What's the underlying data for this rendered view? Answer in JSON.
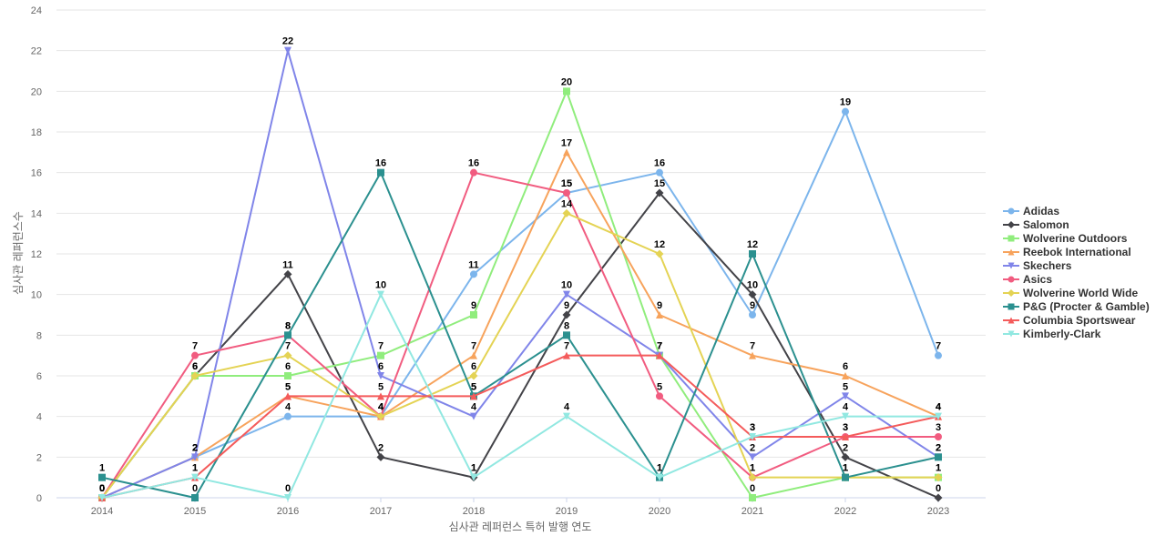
{
  "chart_data": {
    "type": "line",
    "title": "",
    "xlabel": "심사관 레퍼런스 특허 발행 연도",
    "ylabel": "심사관 레퍼런스수",
    "x": [
      "2014",
      "2015",
      "2016",
      "2017",
      "2018",
      "2019",
      "2020",
      "2021",
      "2022",
      "2023"
    ],
    "ylim": [
      0,
      24
    ],
    "yticks": [
      0,
      2,
      4,
      6,
      8,
      10,
      12,
      14,
      16,
      18,
      20,
      22,
      24
    ],
    "grid": true,
    "legend_position": "right",
    "series": [
      {
        "name": "Adidas",
        "color": "#7cb5ec",
        "marker": "circle",
        "values": [
          0,
          2,
          4,
          4,
          11,
          15,
          16,
          9,
          19,
          7
        ]
      },
      {
        "name": "Salomon",
        "color": "#434348",
        "marker": "diamond",
        "values": [
          0,
          6,
          11,
          2,
          1,
          9,
          15,
          10,
          2,
          0
        ]
      },
      {
        "name": "Wolverine Outdoors",
        "color": "#90ed7d",
        "marker": "square",
        "values": [
          0,
          6,
          6,
          7,
          9,
          20,
          7,
          0,
          1,
          1
        ]
      },
      {
        "name": "Reebok International",
        "color": "#f7a35c",
        "marker": "triangle",
        "values": [
          0,
          2,
          5,
          4,
          7,
          17,
          9,
          7,
          6,
          4
        ]
      },
      {
        "name": "Skechers",
        "color": "#8085e9",
        "marker": "triangle-down",
        "values": [
          0,
          2,
          22,
          6,
          4,
          10,
          7,
          2,
          5,
          2
        ]
      },
      {
        "name": "Asics",
        "color": "#f15c80",
        "marker": "circle",
        "values": [
          0,
          7,
          8,
          4,
          16,
          15,
          5,
          1,
          3,
          3
        ]
      },
      {
        "name": "Wolverine World Wide",
        "color": "#e4d354",
        "marker": "diamond",
        "values": [
          0,
          6,
          7,
          4,
          6,
          14,
          12,
          1,
          1,
          1
        ]
      },
      {
        "name": "P&G (Procter & Gamble)",
        "color": "#2b908f",
        "marker": "square",
        "values": [
          1,
          0,
          8,
          16,
          5,
          8,
          1,
          12,
          1,
          2
        ]
      },
      {
        "name": "Columbia Sportswear",
        "color": "#f45b5b",
        "marker": "triangle",
        "values": [
          0,
          1,
          5,
          5,
          5,
          7,
          7,
          3,
          3,
          4
        ]
      },
      {
        "name": "Kimberly-Clark",
        "color": "#91e8e1",
        "marker": "triangle-down",
        "values": [
          0,
          1,
          0,
          10,
          1,
          4,
          1,
          3,
          4,
          4
        ]
      }
    ]
  }
}
